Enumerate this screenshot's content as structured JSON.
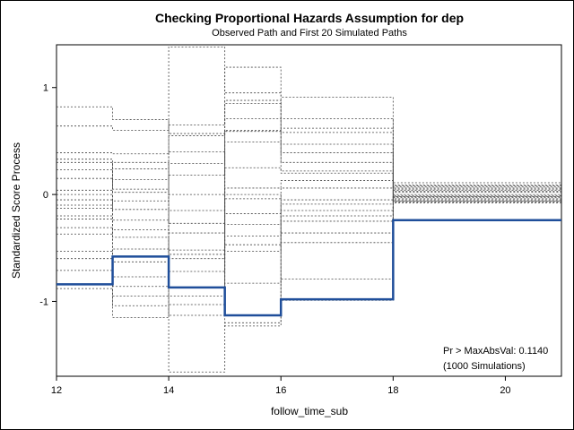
{
  "chart_data": {
    "type": "line",
    "title": "Checking Proportional Hazards Assumption for dep",
    "subtitle": "Observed Path and First 20 Simulated Paths",
    "xlabel": "follow_time_sub",
    "ylabel": "Standardized Score Process",
    "xlim": [
      12,
      21
    ],
    "ylim": [
      -1.7,
      1.4
    ],
    "x_ticks": [
      12,
      14,
      16,
      18,
      20
    ],
    "y_ticks": [
      -1,
      0,
      1
    ],
    "x_tick_labels": [
      "12",
      "14",
      "16",
      "18",
      "20"
    ],
    "y_tick_labels": [
      "-1",
      "0",
      "1"
    ],
    "grid": false,
    "legend": "none",
    "annotation": [
      "Pr > MaxAbsVal: 0.1140",
      "(1000 Simulations)"
    ],
    "colors": {
      "observed": "#1f4e9a",
      "simulated": "#444444"
    },
    "x_breaks": [
      12,
      13,
      14,
      15,
      16,
      18,
      21
    ],
    "observed_path": [
      -0.84,
      -0.58,
      -0.87,
      -1.13,
      -0.98,
      -0.24
    ],
    "simulated_paths": [
      [
        0.82,
        0.7,
        0.57,
        0.88,
        0.71,
        0.08
      ],
      [
        0.64,
        0.6,
        0.65,
        1.19,
        0.91,
        0.11
      ],
      [
        0.39,
        0.38,
        1.38,
        0.95,
        0.58,
        0.05
      ],
      [
        0.33,
        0.24,
        0.55,
        0.85,
        0.62,
        0.02
      ],
      [
        0.23,
        0.14,
        0.29,
        0.71,
        0.47,
        -0.02
      ],
      [
        0.15,
        0.02,
        0.18,
        0.59,
        0.39,
        -0.04
      ],
      [
        0.04,
        -0.06,
        0.0,
        0.49,
        0.3,
        -0.06
      ],
      [
        -0.05,
        -0.14,
        -0.27,
        0.25,
        0.2,
        -0.07
      ],
      [
        -0.13,
        -0.24,
        -0.36,
        0.06,
        0.13,
        -0.08
      ],
      [
        -0.23,
        -0.33,
        -0.52,
        -0.04,
        0.06,
        0.09
      ],
      [
        -0.31,
        -0.4,
        -0.56,
        -0.18,
        -0.05,
        0.07
      ],
      [
        -0.37,
        -0.51,
        -0.6,
        -0.28,
        -0.09,
        0.03
      ],
      [
        -0.53,
        -0.63,
        -0.72,
        -0.39,
        -0.15,
        -0.01
      ],
      [
        -0.6,
        -0.77,
        -0.87,
        -0.47,
        -0.2,
        -0.03
      ],
      [
        -0.71,
        -0.86,
        -1.03,
        -0.53,
        -0.25,
        -0.05
      ],
      [
        -0.88,
        -1.04,
        -1.13,
        -0.83,
        -0.36,
        0.0
      ],
      [
        0.0,
        -0.95,
        -1.66,
        -1.2,
        -0.45,
        -0.06
      ],
      [
        -0.2,
        -1.15,
        0.4,
        -1.23,
        -0.79,
        0.04
      ],
      [
        0.3,
        0.05,
        -0.95,
        0.0,
        -0.99,
        -0.02
      ],
      [
        -0.1,
        0.3,
        -0.15,
        0.6,
        0.22,
        0.06
      ]
    ]
  }
}
